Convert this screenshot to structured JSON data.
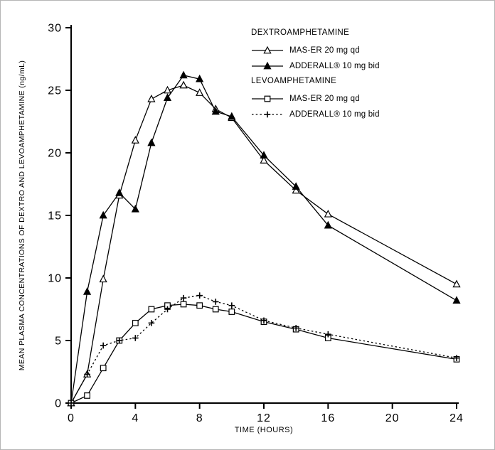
{
  "chart_data": {
    "type": "line",
    "xlabel": "TIME (HOURS)",
    "ylabel": "MEAN PLASMA CONCENTRATIONS OF DEXTRO AND LEVOAMPHETAMINE (ng/mL)",
    "xlim": [
      0,
      24
    ],
    "ylim": [
      0,
      30
    ],
    "xticks": [
      0,
      4,
      8,
      12,
      16,
      20,
      24
    ],
    "yticks": [
      0,
      5,
      10,
      15,
      20,
      25,
      30
    ],
    "grid": false,
    "legend_position": "top-right-inside",
    "x": [
      0,
      1,
      2,
      3,
      4,
      5,
      6,
      7,
      8,
      9,
      10,
      12,
      14,
      16,
      24
    ],
    "groups": [
      {
        "label": "DEXTROAMPHETAMINE",
        "series_indexes": [
          0,
          1
        ]
      },
      {
        "label": "LEVOAMPHETAMINE",
        "series_indexes": [
          2,
          3
        ]
      }
    ],
    "series": [
      {
        "name": "MAS-ER 20 mg qd",
        "group": "DEXTROAMPHETAMINE",
        "marker": "triangle-open",
        "line": "solid",
        "values": [
          0,
          2.3,
          9.9,
          16.6,
          21.0,
          24.3,
          25.0,
          25.4,
          24.8,
          23.5,
          22.8,
          19.4,
          17.0,
          15.1,
          9.5
        ]
      },
      {
        "name": "ADDERALL® 10 mg bid",
        "group": "DEXTROAMPHETAMINE",
        "marker": "triangle-filled",
        "line": "solid",
        "values": [
          0,
          8.9,
          15.0,
          16.8,
          15.5,
          20.8,
          24.4,
          26.2,
          25.9,
          23.3,
          22.9,
          19.8,
          17.3,
          14.2,
          8.2
        ]
      },
      {
        "name": "MAS-ER 20 mg qd",
        "group": "LEVOAMPHETAMINE",
        "marker": "square-open",
        "line": "solid",
        "values": [
          0,
          0.6,
          2.8,
          5.0,
          6.4,
          7.5,
          7.8,
          7.9,
          7.8,
          7.5,
          7.3,
          6.5,
          5.9,
          5.2,
          3.5
        ]
      },
      {
        "name": "ADDERALL® 10 mg bid",
        "group": "LEVOAMPHETAMINE",
        "marker": "plus",
        "line": "dotted",
        "values": [
          0,
          2.3,
          4.6,
          5.0,
          5.2,
          6.4,
          7.5,
          8.4,
          8.6,
          8.1,
          7.8,
          6.6,
          6.0,
          5.5,
          3.6
        ]
      }
    ]
  }
}
